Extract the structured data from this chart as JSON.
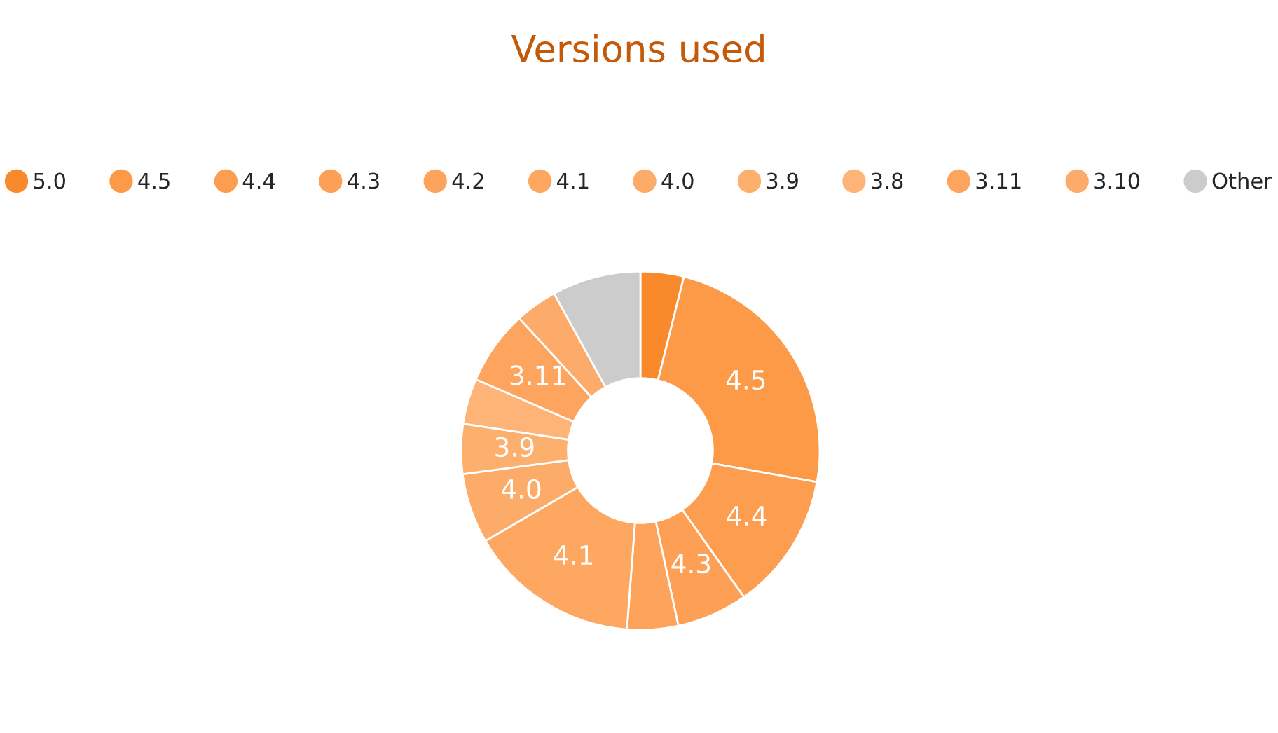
{
  "chart_data": {
    "type": "donut",
    "title": "Versions used",
    "categories": [
      "5.0",
      "4.5",
      "4.4",
      "4.3",
      "4.2",
      "4.1",
      "4.0",
      "3.9",
      "3.8",
      "3.11",
      "3.10",
      "Other"
    ],
    "values": [
      3.9,
      23.9,
      12.4,
      6.4,
      4.6,
      15.4,
      6.3,
      4.5,
      4.1,
      6.7,
      3.8,
      8.0
    ],
    "colors": [
      "#f98a2b",
      "#fd9a48",
      "#fd9d4f",
      "#fda055",
      "#fda35b",
      "#fda761",
      "#fdab68",
      "#fdaf6e",
      "#feb476",
      "#fda45e",
      "#fdab6a",
      "#cccccc"
    ],
    "annotations": [
      {
        "text": "4.5",
        "x": "4.5"
      },
      {
        "text": "4.4",
        "x": "4.4"
      },
      {
        "text": "4.3",
        "x": "4.3"
      },
      {
        "text": "4.1",
        "x": "4.1"
      },
      {
        "text": "4.0",
        "x": "4.0"
      },
      {
        "text": "3.9",
        "x": "3.9"
      },
      {
        "text": "3.11",
        "x": "3.11"
      }
    ],
    "legend": "top"
  }
}
